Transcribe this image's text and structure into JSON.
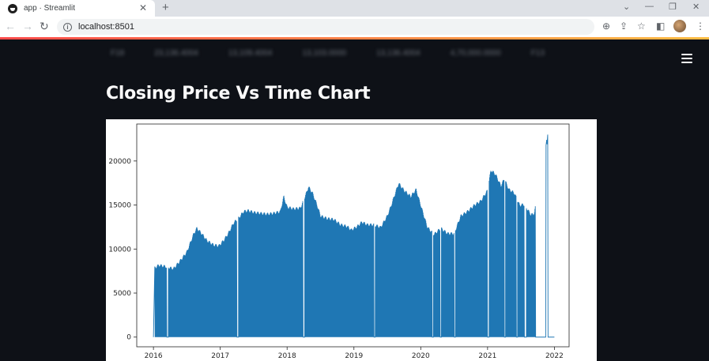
{
  "browser": {
    "tab_title": "app · Streamlit",
    "url": "localhost:8501"
  },
  "app": {
    "blurred_row": [
      "F18",
      "23,136.4004",
      "13,109.4004",
      "13,103.0000",
      "13,136.4004",
      "4,70,000.0000",
      "F13"
    ],
    "page_title": "Closing Price Vs Time Chart"
  },
  "colors": {
    "app_bg": "#0e1117",
    "accent_start": "#ff4b4b",
    "accent_end": "#ffbd45",
    "series": "#1f77b4"
  },
  "icons": [
    "streamlit-favicon",
    "close-icon",
    "new-tab-icon",
    "back-icon",
    "forward-icon",
    "reload-icon",
    "info-icon",
    "zoom-icon",
    "share-icon",
    "star-icon",
    "sidepanel-icon",
    "avatar",
    "kebab-menu-icon",
    "hamburger-menu-icon"
  ],
  "chart_data": {
    "type": "line",
    "title": "",
    "xlabel": "",
    "ylabel": "",
    "x_ticks": [
      "2016",
      "2017",
      "2018",
      "2019",
      "2020",
      "2021",
      "2022"
    ],
    "y_ticks": [
      "0",
      "5000",
      "10000",
      "15000",
      "20000"
    ],
    "xlim": [
      2015.75,
      2022.22
    ],
    "ylim": [
      -1100,
      24200
    ],
    "series": [
      {
        "points": [
          [
            2016.02,
            7700
          ],
          [
            2016.08,
            8000
          ],
          [
            2016.15,
            7900
          ],
          [
            2016.2,
            7800
          ],
          [
            2016.3,
            7600
          ],
          [
            2016.4,
            8500
          ],
          [
            2016.5,
            9500
          ],
          [
            2016.6,
            11500
          ],
          [
            2016.65,
            12200
          ],
          [
            2016.72,
            11600
          ],
          [
            2016.8,
            10800
          ],
          [
            2016.9,
            10300
          ],
          [
            2016.98,
            10200
          ],
          [
            2017.05,
            10800
          ],
          [
            2017.12,
            11600
          ],
          [
            2017.2,
            12800
          ],
          [
            2017.28,
            13400
          ],
          [
            2017.35,
            14100
          ],
          [
            2017.42,
            14200
          ],
          [
            2017.5,
            14000
          ],
          [
            2017.6,
            13900
          ],
          [
            2017.7,
            13800
          ],
          [
            2017.8,
            13900
          ],
          [
            2017.9,
            14100
          ],
          [
            2017.95,
            15800
          ],
          [
            2018.0,
            14600
          ],
          [
            2018.1,
            14400
          ],
          [
            2018.2,
            14500
          ],
          [
            2018.28,
            16000
          ],
          [
            2018.32,
            16900
          ],
          [
            2018.38,
            16200
          ],
          [
            2018.45,
            14800
          ],
          [
            2018.5,
            13600
          ],
          [
            2018.6,
            13300
          ],
          [
            2018.7,
            13200
          ],
          [
            2018.8,
            12600
          ],
          [
            2018.9,
            12400
          ],
          [
            2018.96,
            12000
          ],
          [
            2019.05,
            12400
          ],
          [
            2019.12,
            12900
          ],
          [
            2019.2,
            12600
          ],
          [
            2019.3,
            12600
          ],
          [
            2019.4,
            12300
          ],
          [
            2019.5,
            13600
          ],
          [
            2019.55,
            14600
          ],
          [
            2019.62,
            16200
          ],
          [
            2019.67,
            17300
          ],
          [
            2019.75,
            16500
          ],
          [
            2019.85,
            15800
          ],
          [
            2019.93,
            16600
          ],
          [
            2020.02,
            14300
          ],
          [
            2020.1,
            12300
          ],
          [
            2020.2,
            11500
          ],
          [
            2020.3,
            12200
          ],
          [
            2020.4,
            11600
          ],
          [
            2020.5,
            11600
          ],
          [
            2020.6,
            13600
          ],
          [
            2020.7,
            14100
          ],
          [
            2020.8,
            14800
          ],
          [
            2020.9,
            15300
          ],
          [
            2021.0,
            16500
          ],
          [
            2021.05,
            18800
          ],
          [
            2021.12,
            18300
          ],
          [
            2021.2,
            17000
          ],
          [
            2021.25,
            17800
          ],
          [
            2021.32,
            16600
          ],
          [
            2021.4,
            16200
          ],
          [
            2021.48,
            14800
          ],
          [
            2021.55,
            14900
          ],
          [
            2021.65,
            13700
          ],
          [
            2021.7,
            13900
          ],
          [
            2021.88,
            22100
          ],
          [
            2021.9,
            23000
          ],
          [
            2022.0,
            0
          ]
        ],
        "baseline": 0
      }
    ]
  }
}
